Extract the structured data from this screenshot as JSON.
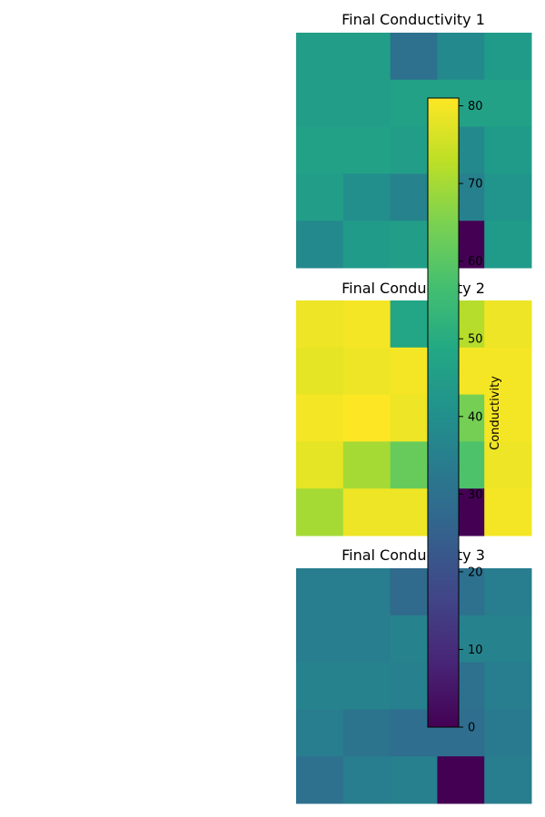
{
  "chart_data": [
    {
      "type": "heatmap",
      "title": "Final Conductivity 1",
      "rows": 5,
      "cols": 5,
      "values": [
        [
          45,
          45,
          30,
          38,
          44
        ],
        [
          45,
          45,
          46,
          46,
          46
        ],
        [
          46,
          46,
          45,
          38,
          44
        ],
        [
          45,
          40,
          36,
          35,
          42
        ],
        [
          38,
          44,
          45,
          0,
          44
        ]
      ]
    },
    {
      "type": "heatmap",
      "title": "Final Conductivity 2",
      "rows": 5,
      "cols": 5,
      "values": [
        [
          79,
          80,
          48,
          72,
          79
        ],
        [
          78,
          79,
          80,
          80,
          80
        ],
        [
          80,
          81,
          79,
          64,
          80
        ],
        [
          78,
          70,
          62,
          58,
          79
        ],
        [
          70,
          79,
          79,
          0,
          80
        ]
      ]
    },
    {
      "type": "heatmap",
      "title": "Final Conductivity 3",
      "rows": 5,
      "cols": 5,
      "values": [
        [
          34,
          34,
          28,
          30,
          34
        ],
        [
          34,
          34,
          36,
          36,
          36
        ],
        [
          36,
          36,
          35,
          30,
          34
        ],
        [
          34,
          31,
          29,
          29,
          33
        ],
        [
          30,
          34,
          35,
          0,
          34
        ]
      ]
    }
  ],
  "colorbar": {
    "label": "Conductivity",
    "vmin": 0,
    "vmax": 81,
    "ticks": [
      "0",
      "10",
      "20",
      "30",
      "40",
      "50",
      "60",
      "70",
      "80"
    ],
    "colormap": "viridis"
  }
}
